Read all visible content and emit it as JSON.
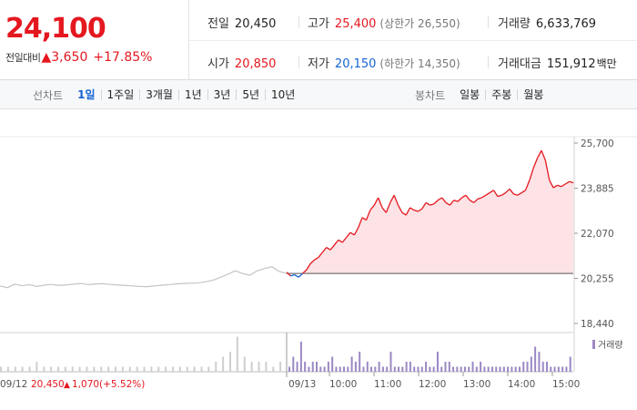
{
  "summary": {
    "price": "24,100",
    "change_label": "전일대비",
    "change_arrow": "▲",
    "change_value": "3,650",
    "change_pct": "+17.85%",
    "prev_close_label": "전일",
    "prev_close": "20,450",
    "high_label": "고가",
    "high": "25,400",
    "upper_limit_text": "(상한가 26,550)",
    "volume_label": "거래량",
    "volume": "6,633,769",
    "open_label": "시가",
    "open": "20,850",
    "low_label": "저가",
    "low": "20,150",
    "lower_limit_text": "(하한가 14,350)",
    "turnover_label": "거래대금",
    "turnover": "151,912",
    "turnover_unit": "백만"
  },
  "tabs": {
    "line_title": "선차트",
    "line_periods": [
      "1일",
      "1주일",
      "3개월",
      "1년",
      "3년",
      "5년",
      "10년"
    ],
    "line_active": "1일",
    "candle_title": "봉차트",
    "candle_periods": [
      "일봉",
      "주봉",
      "월봉"
    ]
  },
  "colors": {
    "up": "#e5171f",
    "down": "#1563d4",
    "prev_day_line": "#c4c4c4",
    "area_fill": "#fde3e5",
    "volume_today": "#9b88c4",
    "volume_prev": "#cfcfcf"
  },
  "chart_data": {
    "type": "line",
    "y_ticks": [
      "25,700",
      "23,885",
      "22,070",
      "20,255",
      "18,440"
    ],
    "ylim": [
      18440,
      25700
    ],
    "base_price": 20450,
    "prev_day": {
      "date_label": "09/12",
      "close": "20,450",
      "change_arrow": "▲",
      "change": "1,070",
      "change_pct": "(+5.52%)",
      "prices": [
        19950,
        19880,
        20020,
        19960,
        20000,
        19930,
        19980,
        20010,
        19970,
        19990,
        20020,
        20050,
        20000,
        20030,
        20040,
        20010,
        19990,
        19970,
        19950,
        19930,
        19920,
        19950,
        19980,
        20000,
        20030,
        20050,
        20060,
        20070,
        20120,
        20180,
        20300,
        20420,
        20560,
        20450,
        20380,
        20560,
        20650,
        20720,
        20530,
        20450
      ]
    },
    "today": {
      "date_label": "09/13",
      "x_ticks": [
        "10:00",
        "11:00",
        "12:00",
        "13:00",
        "14:00",
        "15:00"
      ],
      "prices": [
        20500,
        20350,
        20400,
        20300,
        20450,
        20600,
        20850,
        21000,
        21100,
        21300,
        21500,
        21400,
        21600,
        21800,
        21700,
        21900,
        22100,
        22000,
        22300,
        22700,
        22600,
        23000,
        23200,
        23500,
        23100,
        22900,
        23300,
        23600,
        23200,
        22900,
        22800,
        23100,
        23000,
        22950,
        23050,
        23300,
        23200,
        23250,
        23400,
        23500,
        23300,
        23200,
        23400,
        23350,
        23500,
        23600,
        23400,
        23300,
        23450,
        23500,
        23600,
        23700,
        23800,
        23550,
        23600,
        23700,
        23850,
        23650,
        23600,
        23700,
        23800,
        24200,
        24700,
        25100,
        25400,
        25000,
        24200,
        23900,
        24000,
        23950,
        24050,
        24150,
        24100
      ],
      "volume_label": "거래량",
      "volume_levels": [
        1,
        3,
        2,
        6,
        2,
        1,
        2,
        2,
        1,
        1,
        2,
        3,
        1,
        1,
        1,
        1,
        3,
        2,
        4,
        1,
        2,
        1,
        1,
        2,
        1,
        1,
        4,
        1,
        1,
        1,
        2,
        2,
        1,
        1,
        1,
        2,
        1,
        1,
        4,
        1,
        2,
        2,
        1,
        1,
        1,
        1,
        1,
        2,
        1,
        2,
        1,
        1,
        1,
        1,
        1,
        1,
        1,
        1,
        1,
        1,
        2,
        2,
        3,
        5,
        4,
        2,
        2,
        1,
        1,
        1,
        1,
        1,
        3
      ]
    },
    "prev_volume_levels": [
      1,
      1,
      1,
      1,
      1,
      2,
      1,
      1,
      1,
      1,
      1,
      1,
      1,
      1,
      1,
      1,
      1,
      1,
      1,
      1,
      1,
      1,
      1,
      1,
      1,
      1,
      1,
      1,
      1,
      1,
      2,
      3,
      4,
      7,
      3,
      2,
      2,
      2,
      1,
      2
    ]
  }
}
